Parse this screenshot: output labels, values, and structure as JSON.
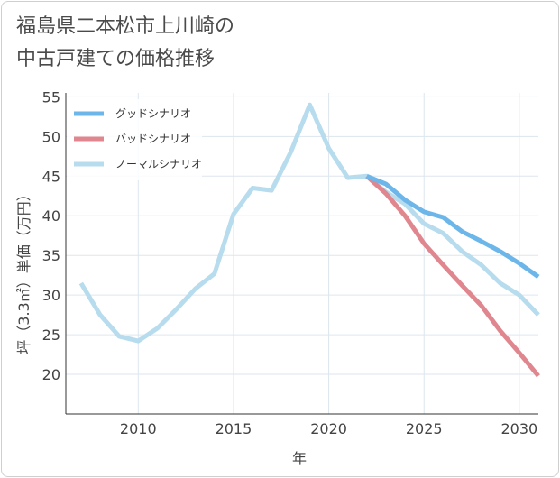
{
  "title_lines": [
    "福島県二本松市上川崎の",
    "中古戸建ての価格推移"
  ],
  "chart_data": {
    "type": "line",
    "title": "福島県二本松市上川崎の中古戸建ての価格推移",
    "xlabel": "年",
    "ylabel": "坪（3.3㎡）単価（万円）",
    "xlim": [
      2006.2,
      2031
    ],
    "ylim": [
      15,
      55.5
    ],
    "xticks": [
      2010,
      2015,
      2020,
      2025,
      2030
    ],
    "yticks": [
      20,
      25,
      30,
      35,
      40,
      45,
      50,
      55
    ],
    "legend_position": "top-left",
    "series": [
      {
        "name": "グッドシナリオ",
        "color": "#6cb6ea",
        "x": [
          2022,
          2023,
          2024,
          2025,
          2026,
          2027,
          2028,
          2029,
          2030,
          2031
        ],
        "y": [
          45.0,
          44.0,
          42.0,
          40.5,
          39.8,
          38.0,
          36.8,
          35.5,
          34.0,
          32.3
        ]
      },
      {
        "name": "バッドシナリオ",
        "color": "#e0868e",
        "x": [
          2022,
          2023,
          2024,
          2025,
          2026,
          2027,
          2028,
          2029,
          2030,
          2031
        ],
        "y": [
          45.0,
          42.8,
          40.0,
          36.5,
          33.8,
          31.2,
          28.7,
          25.5,
          22.7,
          19.8
        ]
      },
      {
        "name": "ノーマルシナリオ",
        "color": "#b7dcee",
        "x": [
          2007,
          2008,
          2009,
          2010,
          2011,
          2012,
          2013,
          2014,
          2015,
          2016,
          2017,
          2018,
          2019,
          2020,
          2021,
          2022,
          2023,
          2024,
          2025,
          2026,
          2027,
          2028,
          2029,
          2030,
          2031
        ],
        "y": [
          31.5,
          27.5,
          24.8,
          24.2,
          25.8,
          28.2,
          30.8,
          32.7,
          40.2,
          43.5,
          43.2,
          48.0,
          54.0,
          48.5,
          44.8,
          45.0,
          43.0,
          41.5,
          39.0,
          37.8,
          35.5,
          33.8,
          31.5,
          30.0,
          27.5
        ]
      }
    ]
  }
}
